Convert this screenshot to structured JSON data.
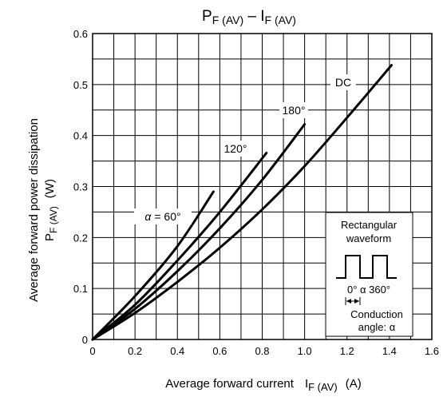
{
  "chart_data": {
    "type": "line",
    "title_main": "P",
    "title_main_sub": "F (AV)",
    "title_sep": " – I",
    "title_sep_sub": "F (AV)",
    "xlabel_text": "Average forward current",
    "xlabel_sym": "I",
    "xlabel_sub": "F (AV)",
    "xlabel_unit": "(A)",
    "ylabel_line1": "Average forward power dissipation",
    "ylabel_sym": "P",
    "ylabel_sub": "F (AV)",
    "ylabel_unit": "(W)",
    "xlim": [
      0,
      1.6
    ],
    "ylim": [
      0,
      0.6
    ],
    "x_ticks": [
      "0",
      "0.2",
      "0.4",
      "0.6",
      "0.8",
      "1.0",
      "1.2",
      "1.4",
      "1.6"
    ],
    "y_ticks": [
      "0",
      "0.1",
      "0.2",
      "0.3",
      "0.4",
      "0.5",
      "0.6"
    ],
    "grid": true,
    "series": [
      {
        "name": "DC",
        "x": [
          0,
          0.2,
          0.4,
          0.6,
          0.8,
          1.0,
          1.2,
          1.41
        ],
        "y": [
          0,
          0.052,
          0.113,
          0.18,
          0.255,
          0.34,
          0.435,
          0.538
        ]
      },
      {
        "name": "180°",
        "x": [
          0,
          0.2,
          0.4,
          0.6,
          0.8,
          1.0
        ],
        "y": [
          0,
          0.06,
          0.134,
          0.218,
          0.313,
          0.422
        ]
      },
      {
        "name": "120°",
        "x": [
          0,
          0.2,
          0.4,
          0.6,
          0.82
        ],
        "y": [
          0,
          0.068,
          0.155,
          0.25,
          0.366
        ]
      },
      {
        "name": "α = 60°",
        "x": [
          0,
          0.2,
          0.4,
          0.57
        ],
        "y": [
          0,
          0.085,
          0.183,
          0.29
        ]
      }
    ],
    "annotations": {
      "dc": "DC",
      "a180": "180°",
      "a120": "120°",
      "a60_sym": "α",
      "a60_rest": "= 60°"
    },
    "inset": {
      "title1": "Rectangular",
      "title2": "waveform",
      "angles": "0° α 360°",
      "cond1": "Conduction",
      "cond2": "angle: α"
    }
  }
}
